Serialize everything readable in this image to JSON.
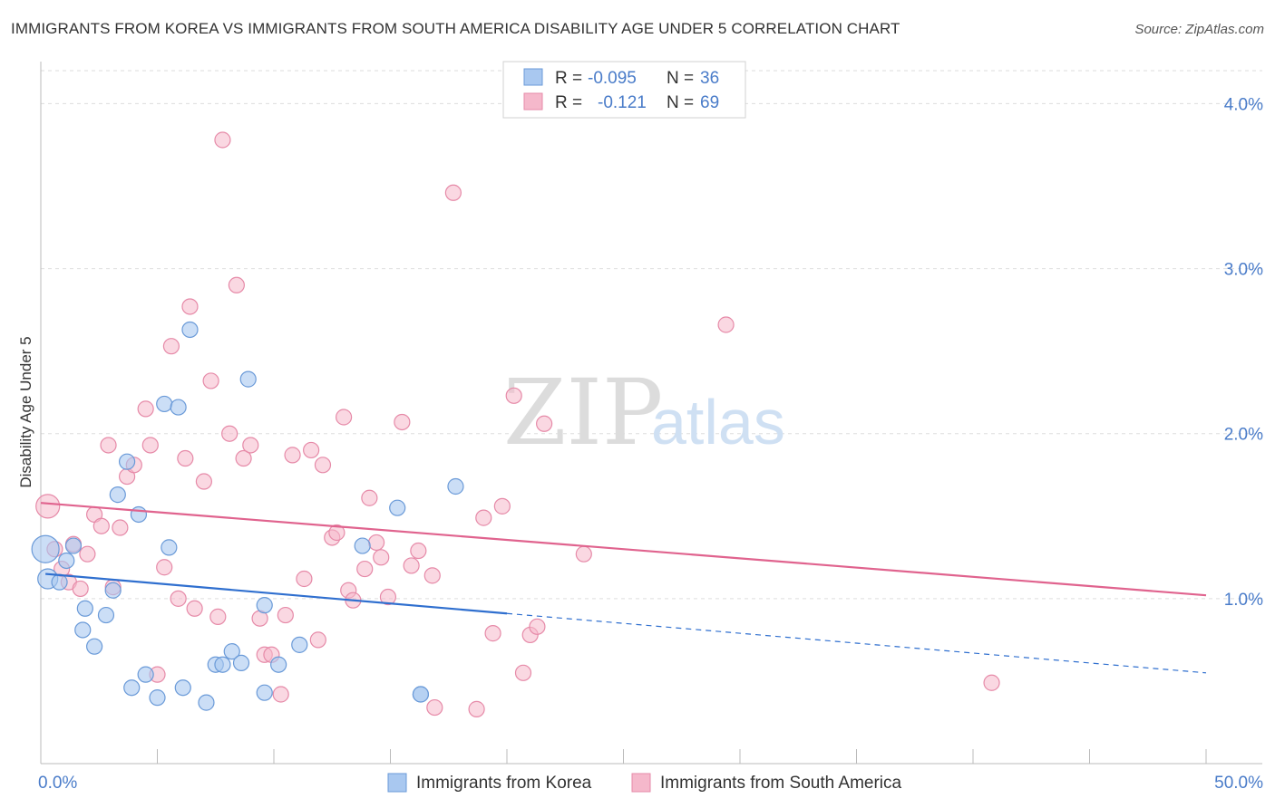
{
  "title": "IMMIGRANTS FROM KOREA VS IMMIGRANTS FROM SOUTH AMERICA DISABILITY AGE UNDER 5 CORRELATION CHART",
  "source": "Source: ZipAtlas.com",
  "watermark": {
    "zip": "ZIP",
    "atlas": "atlas"
  },
  "colors": {
    "korea_fill": "#a9c8f0",
    "korea_stroke": "#6a9ad8",
    "korea_line": "#2f6fcf",
    "sa_fill": "#f5b8cb",
    "sa_stroke": "#e68aa8",
    "sa_line": "#e0638e",
    "grid": "#dddddd",
    "tick_label": "#4a7cc9"
  },
  "legend": {
    "rows": [
      {
        "r_label": "R =",
        "r_value": "-0.095",
        "n_label": "N =",
        "n_value": "36"
      },
      {
        "r_label": "R =",
        "r_value": "-0.121",
        "n_label": "N =",
        "n_value": "69"
      }
    ]
  },
  "chart_data": {
    "type": "scatter",
    "xlabel": "",
    "ylabel": "Disability Age Under 5",
    "xlim": [
      0,
      50
    ],
    "ylim": [
      0,
      4.2
    ],
    "x_tick_labels": [
      "0.0%",
      "50.0%"
    ],
    "y_ticks": [
      1.0,
      2.0,
      3.0,
      4.0
    ],
    "y_tick_labels": [
      "1.0%",
      "2.0%",
      "3.0%",
      "4.0%"
    ],
    "grid": "horizontal dashed",
    "legend_position": "bottom",
    "series": [
      {
        "name": "Immigrants from Korea",
        "points": [
          [
            0.2,
            1.3
          ],
          [
            0.3,
            1.12
          ],
          [
            0.8,
            1.1
          ],
          [
            1.1,
            1.23
          ],
          [
            1.4,
            1.32
          ],
          [
            1.9,
            0.94
          ],
          [
            1.8,
            0.81
          ],
          [
            2.3,
            0.71
          ],
          [
            2.8,
            0.9
          ],
          [
            3.1,
            1.05
          ],
          [
            3.3,
            1.63
          ],
          [
            3.7,
            1.83
          ],
          [
            4.2,
            1.51
          ],
          [
            4.5,
            0.54
          ],
          [
            3.9,
            0.46
          ],
          [
            5.0,
            0.4
          ],
          [
            5.3,
            2.18
          ],
          [
            5.5,
            1.31
          ],
          [
            5.9,
            2.16
          ],
          [
            6.1,
            0.46
          ],
          [
            6.4,
            2.63
          ],
          [
            7.1,
            0.37
          ],
          [
            7.5,
            0.6
          ],
          [
            7.8,
            0.6
          ],
          [
            8.2,
            0.68
          ],
          [
            8.6,
            0.61
          ],
          [
            8.9,
            2.33
          ],
          [
            9.6,
            0.96
          ],
          [
            9.6,
            0.43
          ],
          [
            10.2,
            0.6
          ],
          [
            11.1,
            0.72
          ],
          [
            13.8,
            1.32
          ],
          [
            15.3,
            1.55
          ],
          [
            16.3,
            0.42
          ],
          [
            16.3,
            0.42
          ],
          [
            17.8,
            1.68
          ]
        ],
        "trend": {
          "x0": 0.2,
          "y0": 1.15,
          "x1": 20.0,
          "y1": 0.91,
          "dash_x1": 50.0,
          "dash_y1": 0.55
        }
      },
      {
        "name": "Immigrants from South America",
        "points": [
          [
            0.3,
            1.56
          ],
          [
            0.6,
            1.3
          ],
          [
            0.9,
            1.18
          ],
          [
            1.2,
            1.1
          ],
          [
            1.4,
            1.33
          ],
          [
            1.7,
            1.06
          ],
          [
            2.0,
            1.27
          ],
          [
            2.3,
            1.51
          ],
          [
            2.6,
            1.44
          ],
          [
            2.9,
            1.93
          ],
          [
            3.1,
            1.07
          ],
          [
            3.4,
            1.43
          ],
          [
            3.7,
            1.74
          ],
          [
            4.0,
            1.81
          ],
          [
            4.5,
            2.15
          ],
          [
            4.7,
            1.93
          ],
          [
            5.0,
            0.54
          ],
          [
            5.3,
            1.19
          ],
          [
            5.6,
            2.53
          ],
          [
            5.9,
            1.0
          ],
          [
            6.2,
            1.85
          ],
          [
            6.4,
            2.77
          ],
          [
            6.6,
            0.94
          ],
          [
            7.0,
            1.71
          ],
          [
            7.3,
            2.32
          ],
          [
            7.6,
            0.89
          ],
          [
            7.8,
            3.78
          ],
          [
            8.1,
            2.0
          ],
          [
            8.4,
            2.9
          ],
          [
            8.7,
            1.85
          ],
          [
            9.0,
            1.93
          ],
          [
            9.4,
            0.88
          ],
          [
            9.6,
            0.66
          ],
          [
            9.9,
            0.66
          ],
          [
            10.3,
            0.42
          ],
          [
            10.5,
            0.9
          ],
          [
            10.8,
            1.87
          ],
          [
            11.3,
            1.12
          ],
          [
            11.6,
            1.9
          ],
          [
            11.9,
            0.75
          ],
          [
            12.1,
            1.81
          ],
          [
            12.5,
            1.37
          ],
          [
            12.7,
            1.4
          ],
          [
            13.0,
            2.1
          ],
          [
            13.2,
            1.05
          ],
          [
            13.4,
            0.99
          ],
          [
            13.9,
            1.18
          ],
          [
            14.1,
            1.61
          ],
          [
            14.4,
            1.34
          ],
          [
            14.6,
            1.25
          ],
          [
            14.9,
            1.01
          ],
          [
            15.5,
            2.07
          ],
          [
            15.9,
            1.2
          ],
          [
            16.2,
            1.29
          ],
          [
            16.9,
            0.34
          ],
          [
            16.8,
            1.14
          ],
          [
            17.7,
            3.46
          ],
          [
            18.7,
            0.33
          ],
          [
            19.0,
            1.49
          ],
          [
            19.4,
            0.79
          ],
          [
            19.8,
            1.56
          ],
          [
            20.3,
            2.23
          ],
          [
            20.7,
            0.55
          ],
          [
            21.0,
            0.78
          ],
          [
            21.3,
            0.83
          ],
          [
            21.6,
            2.06
          ],
          [
            23.3,
            1.27
          ],
          [
            29.4,
            2.66
          ],
          [
            40.8,
            0.49
          ]
        ],
        "trend": {
          "x0": 0.0,
          "y0": 1.58,
          "x1": 50.0,
          "y1": 1.02
        }
      }
    ]
  }
}
